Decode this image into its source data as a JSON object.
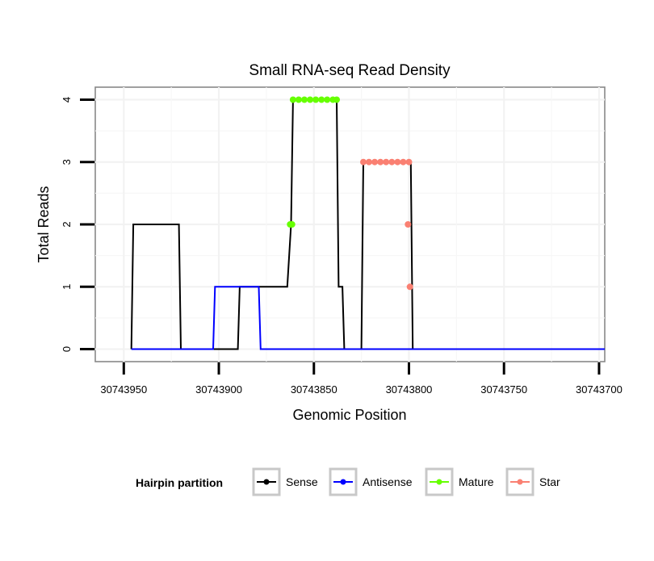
{
  "chart_data": {
    "type": "line",
    "title": "Small RNA-seq Read Density",
    "xlabel": "Genomic Position",
    "ylabel": "Total Reads",
    "x_reversed": true,
    "xlim": [
      30743965,
      30743697
    ],
    "ylim": [
      -0.2,
      4.2
    ],
    "x_ticks": [
      30743950,
      30743900,
      30743850,
      30743800,
      30743750,
      30743700
    ],
    "x_tick_labels": [
      "30743950",
      "30743900",
      "30743850",
      "30743800",
      "30743750",
      "30743700"
    ],
    "y_ticks": [
      0,
      1,
      2,
      3,
      4
    ],
    "y_tick_labels": [
      "0",
      "1",
      "2",
      "3",
      "4"
    ],
    "grid": true,
    "series": [
      {
        "name": "Sense",
        "color": "#000000",
        "kind": "line",
        "points": [
          [
            30743946,
            0
          ],
          [
            30743945,
            2
          ],
          [
            30743921,
            2
          ],
          [
            30743920,
            0
          ],
          [
            30743890,
            0
          ],
          [
            30743889,
            1
          ],
          [
            30743864,
            1
          ],
          [
            30743862,
            2
          ],
          [
            30743861,
            4
          ],
          [
            30743838,
            4
          ],
          [
            30743837,
            1
          ],
          [
            30743835,
            1
          ],
          [
            30743834,
            0
          ],
          [
            30743825,
            0
          ],
          [
            30743824,
            3
          ],
          [
            30743799,
            3
          ],
          [
            30743798,
            0
          ],
          [
            30743697,
            0
          ]
        ]
      },
      {
        "name": "Antisense",
        "color": "#0000ff",
        "kind": "line",
        "points": [
          [
            30743946,
            0
          ],
          [
            30743903,
            0
          ],
          [
            30743902,
            1
          ],
          [
            30743879,
            1
          ],
          [
            30743878,
            0
          ],
          [
            30743697,
            0
          ]
        ]
      },
      {
        "name": "Mature",
        "color": "#66ff00",
        "kind": "points",
        "points": [
          [
            30743862.5,
            2
          ],
          [
            30743861.5,
            2
          ],
          [
            30743861,
            4
          ],
          [
            30743858,
            4
          ],
          [
            30743855,
            4
          ],
          [
            30743852,
            4
          ],
          [
            30743849,
            4
          ],
          [
            30743846,
            4
          ],
          [
            30743843,
            4
          ],
          [
            30743840,
            4
          ],
          [
            30743838,
            4
          ]
        ]
      },
      {
        "name": "Star",
        "color": "#fa8072",
        "kind": "points",
        "points": [
          [
            30743824,
            3
          ],
          [
            30743821,
            3
          ],
          [
            30743818,
            3
          ],
          [
            30743815,
            3
          ],
          [
            30743812,
            3
          ],
          [
            30743809,
            3
          ],
          [
            30743806,
            3
          ],
          [
            30743803,
            3
          ],
          [
            30743800,
            3
          ],
          [
            30743800.5,
            2
          ],
          [
            30743799.5,
            1
          ]
        ]
      }
    ]
  },
  "legend": {
    "title": "Hairpin partition",
    "position": "bottom",
    "items": [
      {
        "label": "Sense",
        "color": "#000000"
      },
      {
        "label": "Antisense",
        "color": "#0000ff"
      },
      {
        "label": "Mature",
        "color": "#66ff00"
      },
      {
        "label": "Star",
        "color": "#fa8072"
      }
    ]
  }
}
